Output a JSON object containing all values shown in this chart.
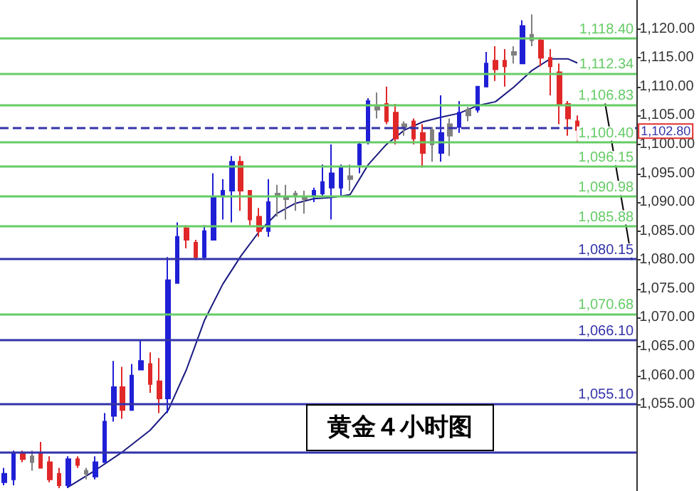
{
  "chart_data": {
    "type": "candlestick",
    "annotations": [
      "黄金４小时图"
    ],
    "categories": [
      null,
      null,
      null,
      null,
      null,
      null,
      null,
      null,
      null,
      null,
      null,
      null,
      null,
      null,
      null,
      null,
      null,
      null,
      null,
      null,
      null,
      null,
      null,
      null,
      null,
      null,
      null,
      null,
      null,
      null,
      null,
      null,
      null,
      null,
      null,
      null,
      null,
      null,
      null,
      null,
      null,
      null,
      null,
      null,
      null,
      null,
      null,
      null,
      null,
      null,
      null,
      null,
      null,
      null,
      null,
      null,
      null,
      null,
      null,
      null,
      null,
      null,
      null,
      null,
      null,
      null,
      null,
      null,
      null,
      null
    ],
    "ohlc": [
      [
        1041.5,
        1044,
        1041,
        1043
      ],
      [
        1042,
        1047,
        1041,
        1046.5
      ],
      [
        1046.5,
        1047,
        1045,
        1045.5
      ],
      [
        1045,
        1047,
        1043.5,
        1046
      ],
      [
        1046.5,
        1048.5,
        1044,
        1044
      ],
      [
        1045,
        1046,
        1041.5,
        1042
      ],
      [
        1043,
        1044,
        1040.5,
        1041
      ],
      [
        1041,
        1046,
        1040.5,
        1045.5
      ],
      [
        1045.5,
        1046,
        1044,
        1044.5
      ],
      [
        1043,
        1044,
        1042,
        1043.5
      ],
      [
        1042.5,
        1046,
        1042,
        1045
      ],
      [
        1045,
        1053.5,
        1045,
        1052
      ],
      [
        1053,
        1062.5,
        1052,
        1058
      ],
      [
        1058,
        1061.5,
        1052.5,
        1054
      ],
      [
        1054,
        1062,
        1054,
        1060
      ],
      [
        1061,
        1066,
        1061,
        1062.5
      ],
      [
        1062,
        1064,
        1057,
        1058.5
      ],
      [
        1059,
        1063,
        1053.5,
        1056
      ],
      [
        1056,
        1080.5,
        1053.5,
        1076.5
      ],
      [
        1076,
        1086.5,
        1076,
        1084
      ],
      [
        1085.5,
        1086,
        1082,
        1083.5
      ],
      [
        1083,
        1083.5,
        1080,
        1080.5
      ],
      [
        1080.5,
        1086,
        1080,
        1085
      ],
      [
        1083.5,
        1095,
        1083.5,
        1091
      ],
      [
        1091,
        1094,
        1087,
        1092
      ],
      [
        1092,
        1098,
        1086.5,
        1097
      ],
      [
        1097,
        1098,
        1088.5,
        1092
      ],
      [
        1092,
        1092,
        1086,
        1087
      ],
      [
        1087.5,
        1089,
        1084,
        1085
      ],
      [
        1085,
        1094,
        1084,
        1090
      ],
      [
        1091,
        1093,
        1087.5,
        1091.5
      ],
      [
        1090.5,
        1093,
        1087,
        1091
      ],
      [
        1091,
        1092,
        1088.5,
        1091.5
      ],
      [
        1090.5,
        1092,
        1088,
        1091
      ],
      [
        1091,
        1092.5,
        1090,
        1092
      ],
      [
        1091.5,
        1096.5,
        1091,
        1093.5
      ],
      [
        1092.5,
        1100,
        1087,
        1095
      ],
      [
        1092.5,
        1096.5,
        1091,
        1096
      ],
      [
        1094,
        1096.5,
        1092,
        1094.5
      ],
      [
        1096.5,
        1100.5,
        1095,
        1100
      ],
      [
        1100.5,
        1108,
        1100,
        1107.5
      ],
      [
        1106.5,
        1109,
        1104.5,
        1106
      ],
      [
        1107,
        1110,
        1103.5,
        1104
      ],
      [
        1105.5,
        1107,
        1100,
        1101
      ],
      [
        1103,
        1104,
        1101.5,
        1103.5
      ],
      [
        1104,
        1104.5,
        1100,
        1101
      ],
      [
        1102,
        1103.5,
        1096,
        1098.5
      ],
      [
        1102.5,
        1103,
        1097,
        1100
      ],
      [
        1098.5,
        1108.5,
        1097,
        1102
      ],
      [
        1101.5,
        1104.5,
        1098,
        1103.5
      ],
      [
        1103,
        1107.5,
        1102,
        1105.5
      ],
      [
        1105,
        1106.5,
        1104,
        1106
      ],
      [
        1106,
        1110,
        1105.5,
        1110
      ],
      [
        1110,
        1116,
        1110,
        1114
      ],
      [
        1114.5,
        1117,
        1111,
        1113
      ],
      [
        1114.5,
        1116.5,
        1110,
        1113.5
      ],
      [
        1115.5,
        1117,
        1114,
        1116
      ],
      [
        1114,
        1121.5,
        1114,
        1120.5
      ],
      [
        1119,
        1122.5,
        1117,
        1118
      ],
      [
        1118,
        1118.5,
        1113.5,
        1115
      ],
      [
        1115,
        1116.5,
        1108.5,
        1113.5
      ],
      [
        1112.5,
        1114,
        1103.5,
        1107
      ],
      [
        1107,
        1107.5,
        1101.5,
        1104.5
      ],
      [
        1104,
        1105,
        1100.5,
        1102.5
      ],
      null,
      null,
      null,
      null,
      null,
      null
    ],
    "colors": [
      "#1f1fd6",
      "#1f1fd6",
      "#e02828",
      "#808080",
      "#e02828",
      "#e02828",
      "#e02828",
      "#1f1fd6",
      "#e02828",
      "#808080",
      "#1f1fd6",
      "#1f1fd6",
      "#1f1fd6",
      "#e02828",
      "#1f1fd6",
      "#1f1fd6",
      "#e02828",
      "#e02828",
      "#1f1fd6",
      "#1f1fd6",
      "#e02828",
      "#e02828",
      "#1f1fd6",
      "#1f1fd6",
      "#1f1fd6",
      "#1f1fd6",
      "#e02828",
      "#e02828",
      "#e02828",
      "#1f1fd6",
      "#808080",
      "#808080",
      "#808080",
      "#808080",
      "#1f1fd6",
      "#1f1fd6",
      "#1f1fd6",
      "#1f1fd6",
      "#808080",
      "#1f1fd6",
      "#1f1fd6",
      "#808080",
      "#e02828",
      "#e02828",
      "#808080",
      "#e02828",
      "#e02828",
      "#808080",
      "#1f1fd6",
      "#808080",
      "#1f1fd6",
      "#808080",
      "#1f1fd6",
      "#1f1fd6",
      "#e02828",
      "#e02828",
      "#808080",
      "#1f1fd6",
      "#808080",
      "#e02828",
      "#e02828",
      "#e02828",
      "#e02828",
      "#e02828",
      null,
      null,
      null,
      null,
      null,
      null
    ],
    "series": [
      {
        "type": "line",
        "color": "#1a1a80",
        "values": [
          null,
          null,
          null,
          null,
          null,
          null,
          null,
          1040.7,
          null,
          null,
          1043.6,
          null,
          null,
          1046.8,
          null,
          null,
          1050.5,
          null,
          1054.0,
          null,
          1061,
          null,
          1069.6,
          null,
          1075.8,
          null,
          1080.7,
          null,
          1084.9,
          null,
          1088.1,
          null,
          1089.8,
          null,
          1090.6,
          null,
          1090.8,
          null,
          1091.3,
          null,
          1096.5,
          null,
          1100,
          null,
          1102.5,
          null,
          1103.9,
          null,
          1104.7,
          null,
          1105.4,
          null,
          1106.7,
          null,
          1107.4,
          null,
          1109.9,
          null,
          1112.8,
          null,
          1114.8,
          null,
          1114.8,
          1114.1,
          null,
          null,
          null,
          null,
          null,
          null
        ]
      },
      {
        "type": "line",
        "color": "#000000",
        "values": [
          null,
          null,
          null,
          null,
          null,
          null,
          null,
          null,
          null,
          null,
          null,
          null,
          null,
          null,
          null,
          null,
          null,
          null,
          null,
          null,
          null,
          null,
          null,
          null,
          null,
          null,
          null,
          null,
          null,
          null,
          null,
          null,
          null,
          null,
          null,
          null,
          null,
          null,
          null,
          null,
          null,
          null,
          null,
          null,
          null,
          null,
          null,
          null,
          null,
          null,
          null,
          null,
          null,
          null,
          null,
          null,
          null,
          null,
          null,
          null,
          null,
          null,
          null,
          null,
          null,
          null,
          1107.6,
          null,
          null,
          1080
        ]
      }
    ],
    "ylim": [
      1040,
      1125
    ],
    "yticks": [
      {
        "value": 1055,
        "label": "1,055.00"
      },
      {
        "value": 1060,
        "label": "1,060.00"
      },
      {
        "value": 1065,
        "label": "1,065.00"
      },
      {
        "value": 1070,
        "label": "1,070.00"
      },
      {
        "value": 1075,
        "label": "1,075.00"
      },
      {
        "value": 1080,
        "label": "1,080.00"
      },
      {
        "value": 1085,
        "label": "1,085.00"
      },
      {
        "value": 1090,
        "label": "1,090.00"
      },
      {
        "value": 1095,
        "label": "1,095.00"
      },
      {
        "value": 1100,
        "label": "1,100.00"
      },
      {
        "value": 1105,
        "label": "1,105.00"
      },
      {
        "value": 1110,
        "label": "1,110.00"
      },
      {
        "value": 1115,
        "label": "1,115.00"
      },
      {
        "value": 1120,
        "label": "1,120.00"
      }
    ],
    "tick_labels": "y",
    "ref_lines": [
      {
        "axis": "y",
        "value": 1118.4,
        "label": "1,118.40",
        "color": "#66cc66"
      },
      {
        "axis": "y",
        "value": 1112.34,
        "label": "1,112.34",
        "color": "#66cc66"
      },
      {
        "axis": "y",
        "value": 1106.83,
        "label": "1,106.83",
        "color": "#66cc66"
      },
      {
        "axis": "y",
        "value": 1102.8,
        "label": "1,102.80",
        "color": "#3333aa",
        "line_style": "dashed"
      },
      {
        "axis": "y",
        "value": 1100.4,
        "label": "1,100.40",
        "color": "#66cc66"
      },
      {
        "axis": "y",
        "value": 1096.15,
        "label": "1,096.15",
        "color": "#66cc66"
      },
      {
        "axis": "y",
        "value": 1090.98,
        "label": "1,090.98",
        "color": "#66cc66"
      },
      {
        "axis": "y",
        "value": 1085.88,
        "label": "1,085.88",
        "color": "#66cc66"
      },
      {
        "axis": "y",
        "value": 1080.15,
        "label": "1,080.15",
        "color": "#3333aa"
      },
      {
        "axis": "y",
        "value": 1070.68,
        "label": "1,070.68",
        "color": "#66cc66"
      },
      {
        "axis": "y",
        "value": 1066.1,
        "label": "1,066.10",
        "color": "#3333aa"
      },
      {
        "axis": "y",
        "value": 1055.1,
        "label": "1,055.10",
        "color": "#3333aa"
      },
      {
        "axis": "y",
        "value": 1046.8,
        "color": "#3333aa"
      }
    ]
  }
}
